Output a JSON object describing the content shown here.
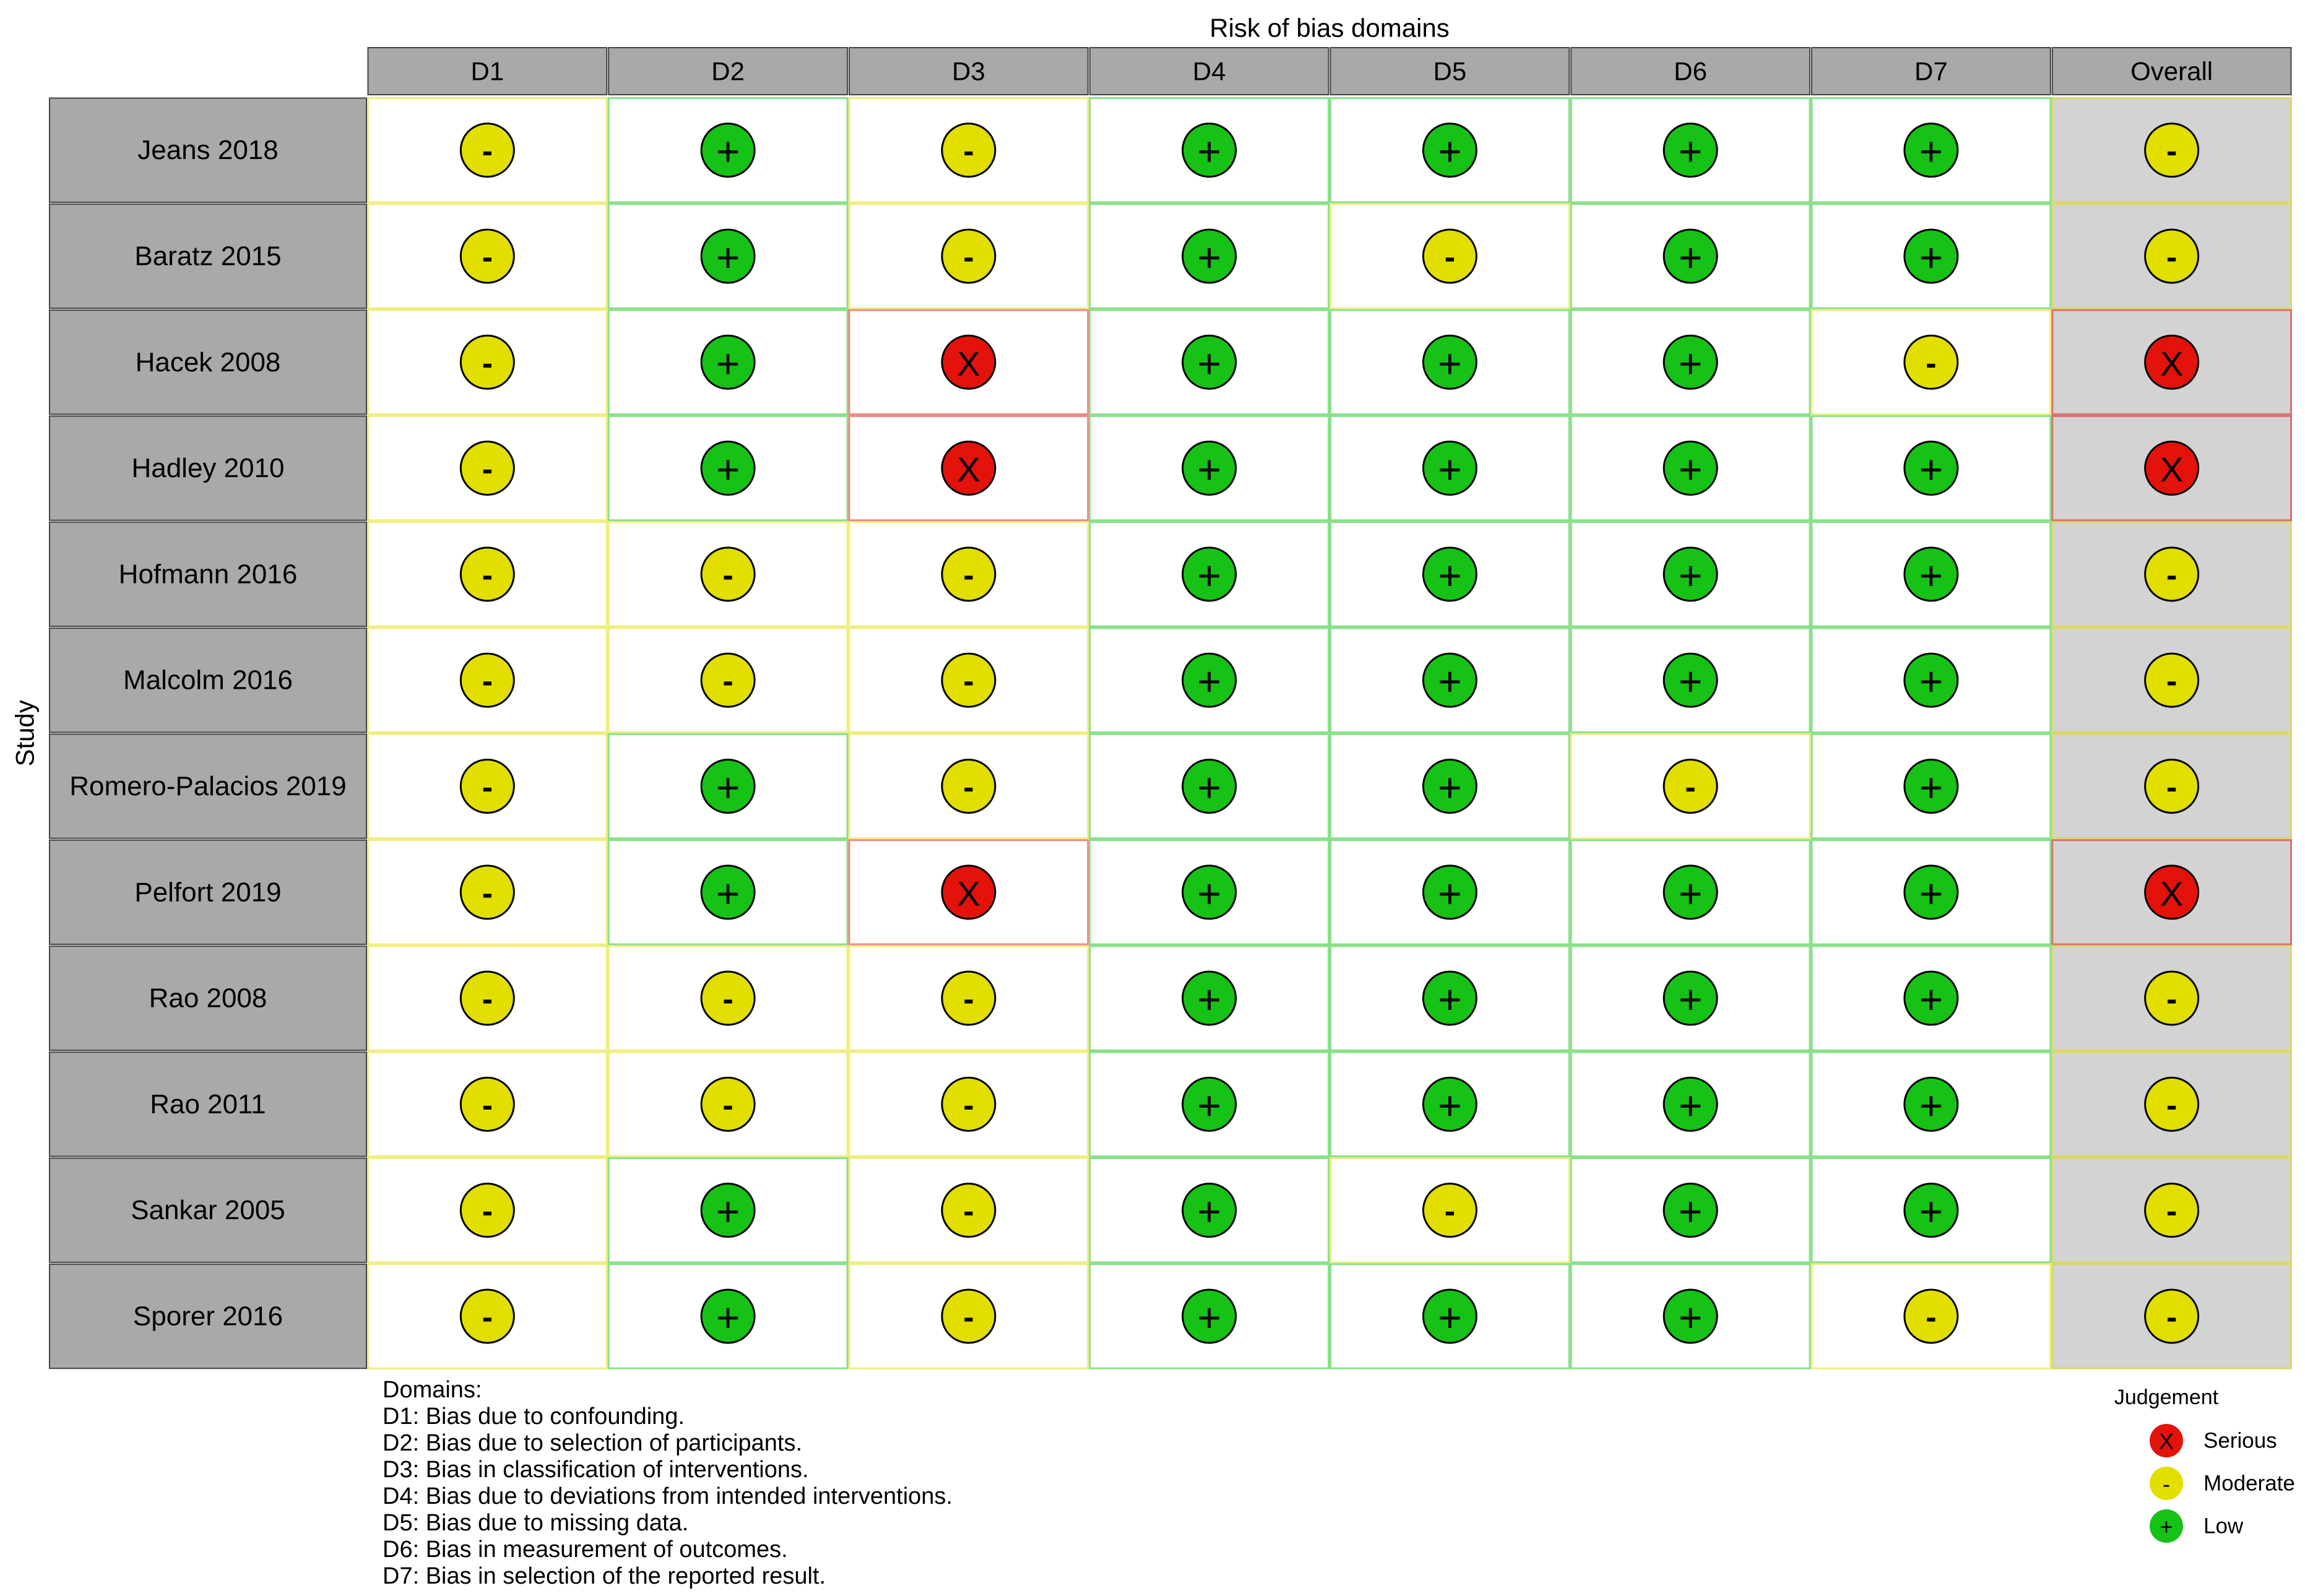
{
  "chart_data": {
    "type": "table",
    "title": "Risk of bias domains",
    "ylabel": "Study",
    "columns": [
      "D1",
      "D2",
      "D3",
      "D4",
      "D5",
      "D6",
      "D7",
      "Overall"
    ],
    "studies": [
      "Jeans 2018",
      "Baratz 2015",
      "Hacek 2008",
      "Hadley 2010",
      "Hofmann 2016",
      "Malcolm 2016",
      "Romero-Palacios 2019",
      "Pelfort 2019",
      "Rao 2008",
      "Rao 2011",
      "Sankar 2005",
      "Sporer 2016"
    ],
    "judgements": [
      [
        "Moderate",
        "Low",
        "Moderate",
        "Low",
        "Low",
        "Low",
        "Low",
        "Moderate"
      ],
      [
        "Moderate",
        "Low",
        "Moderate",
        "Low",
        "Moderate",
        "Low",
        "Low",
        "Moderate"
      ],
      [
        "Moderate",
        "Low",
        "Serious",
        "Low",
        "Low",
        "Low",
        "Moderate",
        "Serious"
      ],
      [
        "Moderate",
        "Low",
        "Serious",
        "Low",
        "Low",
        "Low",
        "Low",
        "Serious"
      ],
      [
        "Moderate",
        "Moderate",
        "Moderate",
        "Low",
        "Low",
        "Low",
        "Low",
        "Moderate"
      ],
      [
        "Moderate",
        "Moderate",
        "Moderate",
        "Low",
        "Low",
        "Low",
        "Low",
        "Moderate"
      ],
      [
        "Moderate",
        "Low",
        "Moderate",
        "Low",
        "Low",
        "Moderate",
        "Low",
        "Moderate"
      ],
      [
        "Moderate",
        "Low",
        "Serious",
        "Low",
        "Low",
        "Low",
        "Low",
        "Serious"
      ],
      [
        "Moderate",
        "Moderate",
        "Moderate",
        "Low",
        "Low",
        "Low",
        "Low",
        "Moderate"
      ],
      [
        "Moderate",
        "Moderate",
        "Moderate",
        "Low",
        "Low",
        "Low",
        "Low",
        "Moderate"
      ],
      [
        "Moderate",
        "Low",
        "Moderate",
        "Low",
        "Moderate",
        "Low",
        "Low",
        "Moderate"
      ],
      [
        "Moderate",
        "Low",
        "Moderate",
        "Low",
        "Low",
        "Low",
        "Moderate",
        "Moderate"
      ]
    ],
    "legend": {
      "title": "Judgement",
      "placement": "bottom-right",
      "items": [
        {
          "label": "Serious",
          "symbol": "X",
          "color": "#e3120b"
        },
        {
          "label": "Moderate",
          "symbol": "-",
          "color": "#e1de00"
        },
        {
          "label": "Low",
          "symbol": "+",
          "color": "#16c216"
        }
      ]
    },
    "domains_key": {
      "title": "Domains:",
      "items": [
        "D1: Bias due to confounding.",
        "D2: Bias due to selection of participants.",
        "D3: Bias in classification of interventions.",
        "D4: Bias due to deviations from intended interventions.",
        "D5: Bias due to missing data.",
        "D6: Bias in measurement of outcomes.",
        "D7: Bias in selection of the reported result."
      ]
    },
    "colors": {
      "header_bg": "#a9a9a9",
      "study_bg": "#a9a9a9",
      "overall_bg": "#d3d3d3",
      "serious": "#e3120b",
      "moderate": "#e1de00",
      "low": "#16c216"
    }
  }
}
